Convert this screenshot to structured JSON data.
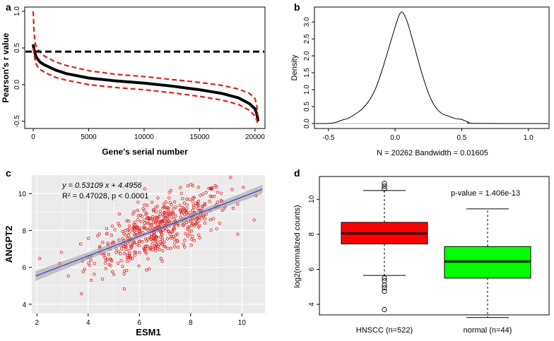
{
  "figure": {
    "labels": {
      "a": "a",
      "b": "b",
      "c": "c",
      "d": "d"
    }
  },
  "chart_data": [
    {
      "id": "a",
      "type": "line",
      "title": "",
      "xlabel": "Gene's serial number",
      "ylabel": "Pearson's r value",
      "xlim": [
        0,
        20262
      ],
      "ylim": [
        -0.55,
        1.0
      ],
      "x_ticks": [
        0,
        5000,
        10000,
        15000,
        20000
      ],
      "x_tick_labels": [
        "0",
        "5000",
        "10000",
        "15000",
        "20000"
      ],
      "y_ticks": [
        -0.5,
        0.0,
        0.5,
        1.0
      ],
      "y_tick_labels": [
        "-0.5",
        "0.0",
        "0.5",
        "1.0"
      ],
      "threshold": 0.45,
      "series": [
        {
          "name": "sorted r values",
          "color": "#000000",
          "x": [
            0,
            100,
            300,
            600,
            1000,
            2000,
            3000,
            5000,
            7500,
            10000,
            12500,
            15000,
            17000,
            18500,
            19500,
            20000,
            20200,
            20262
          ],
          "y": [
            0.55,
            0.45,
            0.37,
            0.31,
            0.27,
            0.2,
            0.15,
            0.09,
            0.05,
            0.02,
            -0.02,
            -0.07,
            -0.12,
            -0.18,
            -0.26,
            -0.33,
            -0.42,
            -0.5
          ]
        },
        {
          "name": "upper bound",
          "color": "#e02020",
          "x": [
            0,
            80,
            200,
            400,
            700,
            1000,
            2000,
            3000,
            5000,
            7500,
            10000,
            12500,
            15000,
            17000,
            18500,
            19500,
            20000,
            20150,
            20262
          ],
          "y": [
            1.0,
            0.7,
            0.55,
            0.48,
            0.43,
            0.39,
            0.31,
            0.26,
            0.19,
            0.14,
            0.11,
            0.07,
            0.03,
            -0.01,
            -0.06,
            -0.12,
            -0.19,
            -0.28,
            -0.43
          ]
        },
        {
          "name": "lower bound",
          "color": "#e02020",
          "x": [
            0,
            200,
            500,
            1000,
            2000,
            3000,
            5000,
            7500,
            10000,
            12500,
            15000,
            17000,
            18500,
            19500,
            20000,
            20150,
            20262
          ],
          "y": [
            0.5,
            0.3,
            0.22,
            0.17,
            0.1,
            0.06,
            0.0,
            -0.04,
            -0.07,
            -0.11,
            -0.16,
            -0.21,
            -0.27,
            -0.35,
            -0.43,
            -0.48,
            -0.55
          ]
        }
      ]
    },
    {
      "id": "b",
      "type": "line",
      "title": "",
      "xlabel": "N = 20262   Bandwidth = 0.01605",
      "ylabel": "Density",
      "xlim": [
        -0.6,
        1.15
      ],
      "ylim": [
        0,
        3.4
      ],
      "x_ticks": [
        -0.5,
        0.0,
        0.5,
        1.0
      ],
      "x_tick_labels": [
        "-0.5",
        "0.0",
        "0.5",
        "1.0"
      ],
      "y_ticks": [
        0.0,
        0.5,
        1.0,
        1.5,
        2.0,
        2.5,
        3.0
      ],
      "y_tick_labels": [
        "0.0",
        "0.5",
        "1.0",
        "1.5",
        "2.0",
        "2.5",
        "3.0"
      ],
      "series": [
        {
          "name": "density",
          "color": "#000000",
          "x": [
            -0.6,
            -0.5,
            -0.45,
            -0.4,
            -0.35,
            -0.3,
            -0.25,
            -0.2,
            -0.15,
            -0.1,
            -0.05,
            0.0,
            0.03,
            0.05,
            0.07,
            0.1,
            0.15,
            0.2,
            0.25,
            0.3,
            0.35,
            0.4,
            0.45,
            0.5,
            0.55,
            0.6,
            1.15
          ],
          "y": [
            0.0,
            0.005,
            0.03,
            0.1,
            0.16,
            0.28,
            0.42,
            0.65,
            1.0,
            1.55,
            2.2,
            2.85,
            3.2,
            3.3,
            3.2,
            2.9,
            2.2,
            1.5,
            0.9,
            0.5,
            0.3,
            0.22,
            0.15,
            0.12,
            0.04,
            0.005,
            0.0
          ]
        }
      ]
    },
    {
      "id": "c",
      "type": "scatter",
      "title": "",
      "xlabel": "ESM1",
      "ylabel": "ANGPT2",
      "xlim": [
        1.8,
        10.9
      ],
      "ylim": [
        3.5,
        11.0
      ],
      "x_ticks": [
        2,
        4,
        6,
        8,
        10
      ],
      "x_tick_labels": [
        "2",
        "4",
        "6",
        "8",
        "10"
      ],
      "y_ticks": [
        4,
        6,
        8,
        10
      ],
      "y_tick_labels": [
        "4",
        "6",
        "8",
        "10"
      ],
      "equation": "y = 0.53109 x + 4.4956",
      "r2": "R² = 0.47028,  p  < 0.0001",
      "fit": {
        "slope": 0.53109,
        "intercept": 4.4956,
        "x_range": [
          1.95,
          10.8
        ]
      },
      "n_points": 522,
      "points_note": "scatter of 522 samples around the fitted regression line"
    },
    {
      "id": "d",
      "type": "box",
      "title": "",
      "xlabel": "",
      "ylabel": "log2(normalized counts)",
      "ylim": [
        3.4,
        11.3
      ],
      "y_ticks": [
        4,
        6,
        8,
        10
      ],
      "y_tick_labels": [
        "4",
        "6",
        "8",
        "10"
      ],
      "annotation": "p-value = 1.406e-13",
      "boxes": [
        {
          "name": "HNSCC (n=522)",
          "color": "#ff0000",
          "whisker_low": 5.65,
          "q1": 7.45,
          "median": 8.05,
          "q3": 8.68,
          "whisker_high": 10.5,
          "outliers": [
            10.9,
            10.75,
            10.6,
            5.5,
            5.35,
            5.1,
            4.95,
            4.75,
            3.7
          ]
        },
        {
          "name": "normal (n=44)",
          "color": "#00ff00",
          "whisker_low": 3.25,
          "q1": 5.5,
          "median": 6.45,
          "q3": 7.3,
          "whisker_high": 9.45,
          "outliers": []
        }
      ]
    }
  ]
}
